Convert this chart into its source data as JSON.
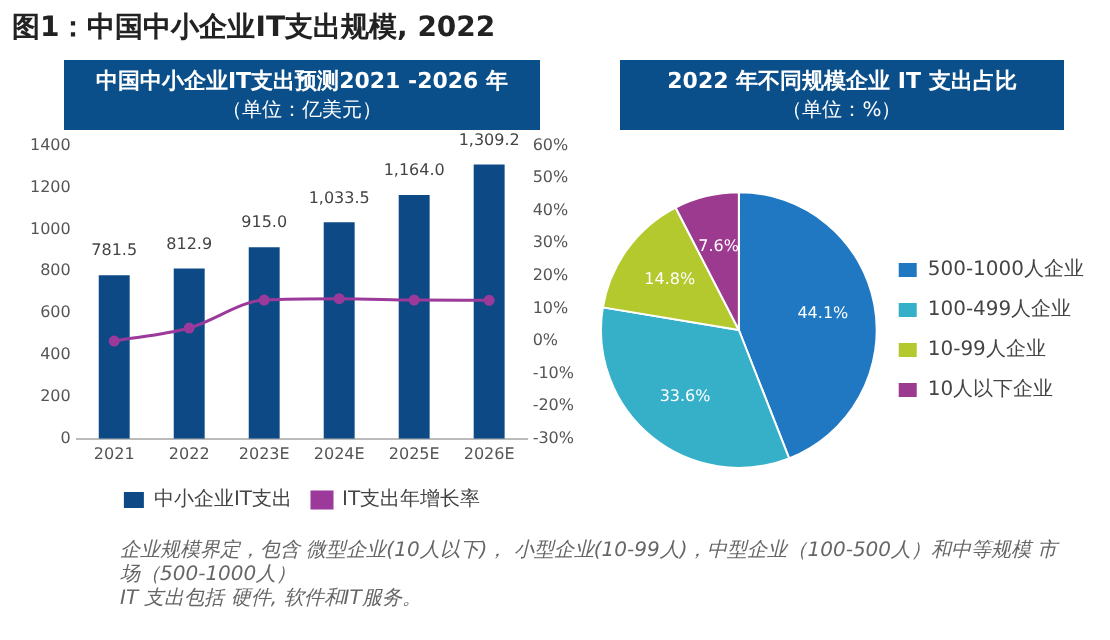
{
  "chart_data": [
    {
      "type": "other",
      "title": "图1：中国中小企业IT支出规模, 2022",
      "annotations": [
        "企业规模界定，包含 微型企业(10人以下)， 小型企业(10-99人)，中型企业（100-500人）和中等规模 市场（500-1000人）",
        "IT 支出包括 硬件, 软件和IT服务。"
      ]
    },
    {
      "type": "bar",
      "title": "中国中小企业IT支出预测2021 -2026 年",
      "subtitle": "（单位：亿美元）",
      "categories": [
        "2021",
        "2022",
        "2023E",
        "2024E",
        "2025E",
        "2026E"
      ],
      "series": [
        {
          "name": "中小企业IT支出",
          "type": "bar",
          "color": "#0d4a85",
          "values": [
            781.5,
            812.9,
            915.0,
            1033.5,
            1164.0,
            1309.2
          ],
          "value_labels": [
            "781.5",
            "812.9",
            "915.0",
            "1,033.5",
            "1,164.0",
            "1,309.2"
          ]
        },
        {
          "name": "IT支出年增长率",
          "type": "line",
          "axis": "y2",
          "color": "#9b3a9b",
          "values": [
            0,
            4,
            12.6,
            13,
            12.6,
            12.5
          ]
        }
      ],
      "ylim": [
        0,
        1400
      ],
      "yticks": [
        0,
        200,
        400,
        600,
        800,
        1000,
        1200,
        1400
      ],
      "y2lim": [
        -30,
        60
      ],
      "y2ticks": [
        {
          "value": -30,
          "label": "-30%"
        },
        {
          "value": -20,
          "label": "-20%"
        },
        {
          "value": -10,
          "label": "-10%"
        },
        {
          "value": 0,
          "label": "0%"
        },
        {
          "value": 10,
          "label": "10%"
        },
        {
          "value": 20,
          "label": "20%"
        },
        {
          "value": 30,
          "label": "30%"
        },
        {
          "value": 40,
          "label": "40%"
        },
        {
          "value": 50,
          "label": "50%"
        },
        {
          "value": 60,
          "label": "60%"
        }
      ],
      "legend": "bottom",
      "marker": "circle"
    },
    {
      "type": "pie",
      "title": "2022 年不同规模企业 IT 支出占比",
      "subtitle": "（单位：%）",
      "categories": [
        "500-1000人企业",
        "100-499人企业",
        "10-99人企业",
        "10人以下企业"
      ],
      "values": [
        44.1,
        33.6,
        14.8,
        7.6
      ],
      "value_labels": [
        "44.1%",
        "33.6%",
        "14.8%",
        "7.6%"
      ],
      "colors": [
        "#1f78c1",
        "#36b0c9",
        "#b3c92e",
        "#9b3a8e"
      ],
      "legend": "right"
    }
  ]
}
